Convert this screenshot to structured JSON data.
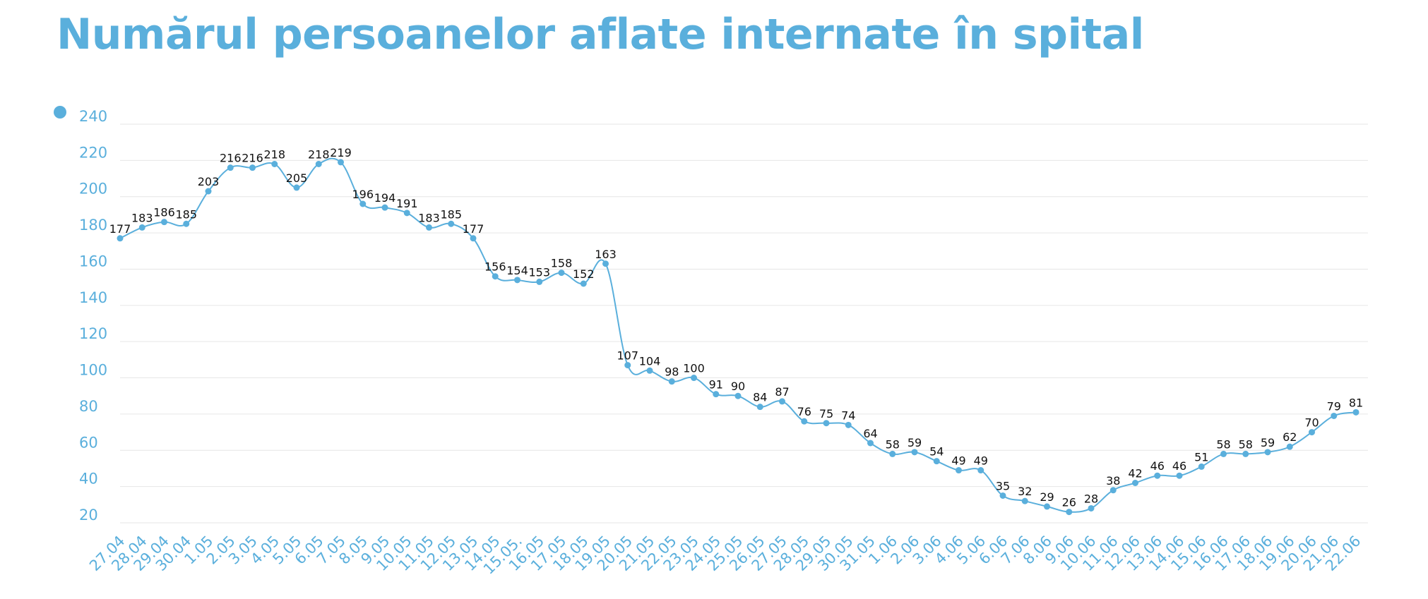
{
  "title": "Numărul persoanelor aflate internate în spital",
  "colors": {
    "accent": "#5aafdc",
    "line": "#5aafdc",
    "grid": "#e6e6e6",
    "label": "#111111"
  },
  "chart_data": {
    "type": "line",
    "title": "Numărul persoanelor aflate internate în spital",
    "xlabel": "",
    "ylabel": "",
    "ylim": [
      20,
      240
    ],
    "yticks": [
      20,
      40,
      60,
      80,
      100,
      120,
      140,
      160,
      180,
      200,
      220,
      240
    ],
    "grid": true,
    "legend": "top-left",
    "categories": [
      "27.04",
      "28.04",
      "29.04",
      "30.04",
      "1.05",
      "2.05",
      "3.05",
      "4.05",
      "5.05",
      "6.05",
      "7.05",
      "8.05",
      "9.05",
      "10.05",
      "11.05",
      "12.05",
      "13.05",
      "14.05",
      "15.05.",
      "16.05",
      "17.05",
      "18.05",
      "19.05",
      "20.05",
      "21.05",
      "22.05",
      "23.05",
      "24.05",
      "25.05",
      "26.05",
      "27.05",
      "28.05",
      "29.05",
      "30.05",
      "31.05",
      "1.06",
      "2.06",
      "3.06",
      "4.06",
      "5.06",
      "6.06",
      "7.06",
      "8.06",
      "9.06",
      "10.06",
      "11.06",
      "12.06",
      "13.06",
      "14.06",
      "15.06",
      "16.06",
      "17.06",
      "18.06",
      "19.06",
      "20.06",
      "21.06",
      "22.06"
    ],
    "series": [
      {
        "name": "",
        "values": [
          177,
          183,
          186,
          185,
          203,
          216,
          216,
          218,
          205,
          218,
          219,
          196,
          194,
          191,
          183,
          185,
          177,
          156,
          154,
          153,
          158,
          152,
          163,
          107,
          104,
          98,
          100,
          91,
          90,
          84,
          87,
          76,
          75,
          74,
          64,
          58,
          59,
          54,
          49,
          49,
          35,
          32,
          29,
          26,
          28,
          38,
          42,
          46,
          46,
          51,
          58,
          58,
          59,
          62,
          70,
          79,
          81
        ]
      }
    ]
  }
}
